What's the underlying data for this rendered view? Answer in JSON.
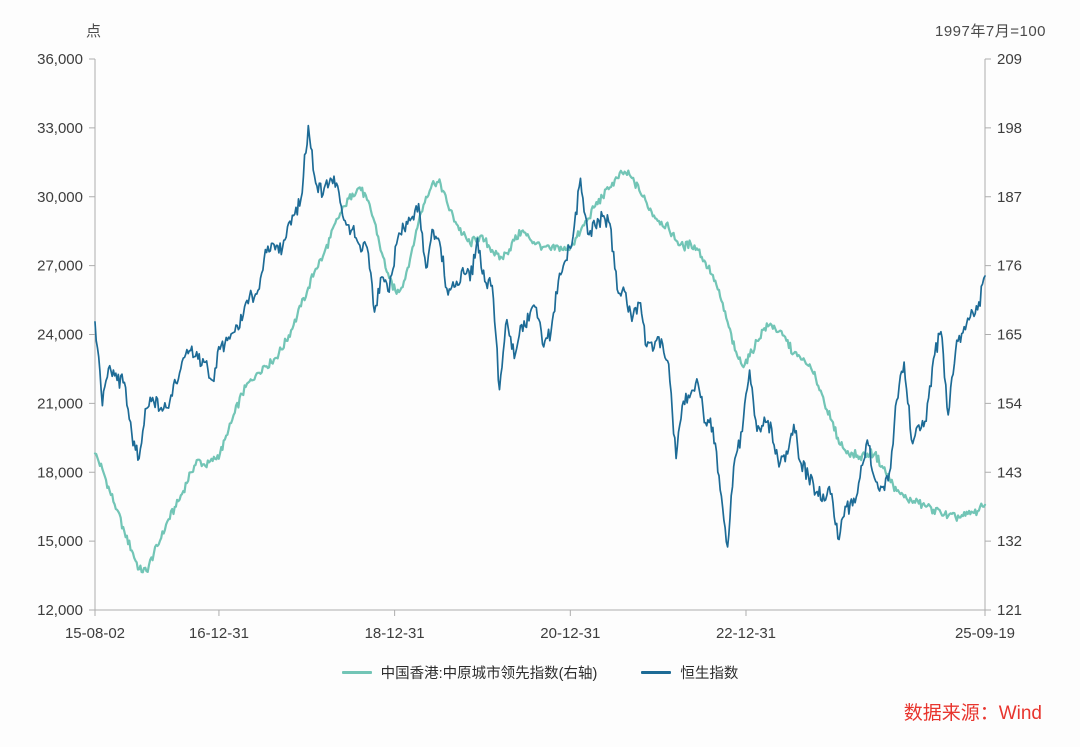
{
  "header": {
    "left_axis_unit": "点",
    "right_axis_note": "1997年7月=100"
  },
  "footer": {
    "source": "数据来源：Wind",
    "source_color": "#E8352E"
  },
  "chart_data": {
    "type": "line",
    "title": "",
    "grid": false,
    "legend_position": "bottom",
    "axis_color": "#ADADAD",
    "x_axis": {
      "range": [
        2015.586,
        2025.718
      ],
      "ticks": [
        {
          "label": "15-08-02",
          "t": 2015.586
        },
        {
          "label": "16-12-31",
          "t": 2016.997
        },
        {
          "label": "18-12-31",
          "t": 2018.997
        },
        {
          "label": "20-12-31",
          "t": 2020.997
        },
        {
          "label": "22-12-31",
          "t": 2022.997
        },
        {
          "label": "25-09-19",
          "t": 2025.718
        }
      ]
    },
    "y_left": {
      "label": "点",
      "range": [
        12000,
        36000
      ],
      "tick_step": 3000,
      "tick_labels": [
        "36,000",
        "33,000",
        "30,000",
        "27,000",
        "24,000",
        "21,000",
        "18,000",
        "15,000",
        "12,000"
      ]
    },
    "y_right": {
      "label": "1997年7月=100",
      "range": [
        121,
        209
      ],
      "tick_step": 11,
      "tick_labels": [
        "209",
        "198",
        "187",
        "176",
        "165",
        "154",
        "143",
        "132",
        "121"
      ]
    },
    "series": [
      {
        "name": "中国香港:中原城市领先指数(右轴)",
        "axis": "right",
        "color": "#72C5B6",
        "start": "2015-08",
        "interval": "monthly",
        "values": [
          146.0,
          143.5,
          140.0,
          137.0,
          133.5,
          130.5,
          127.5,
          127.2,
          130.0,
          132.5,
          135.5,
          137.5,
          140.0,
          143.0,
          145.0,
          144.0,
          144.8,
          146.0,
          149.0,
          152.5,
          155.5,
          157.5,
          158.8,
          160.0,
          160.5,
          162.0,
          164.0,
          166.5,
          169.5,
          172.5,
          175.5,
          177.5,
          180.5,
          183.5,
          185.5,
          187.5,
          188.5,
          186.5,
          183.0,
          178.0,
          174.0,
          171.5,
          173.5,
          178.0,
          183.0,
          187.0,
          189.5,
          189.0,
          185.5,
          183.0,
          181.0,
          179.5,
          180.5,
          180.0,
          178.5,
          177.0,
          178.0,
          180.0,
          181.5,
          180.5,
          179.5,
          179.0,
          178.5,
          179.0,
          178.5,
          179.5,
          181.5,
          183.5,
          185.5,
          187.0,
          188.5,
          190.0,
          191.0,
          190.0,
          188.0,
          186.0,
          184.0,
          183.0,
          182.0,
          180.0,
          179.0,
          179.5,
          178.5,
          176.5,
          174.5,
          171.0,
          167.0,
          162.5,
          160.0,
          161.5,
          164.0,
          166.0,
          166.5,
          165.5,
          164.0,
          162.0,
          161.0,
          160.0,
          158.0,
          155.0,
          151.5,
          148.5,
          146.5,
          146.0,
          145.5,
          146.0,
          146.0,
          144.0,
          142.0,
          140.0,
          139.0,
          138.5,
          138.0,
          137.5,
          137.0,
          136.5,
          136.0,
          135.8,
          136.0,
          136.3,
          136.8,
          137.8
        ]
      },
      {
        "name": "恒生指数",
        "axis": "left",
        "color": "#1D6B96",
        "start": "2015-08",
        "interval": "monthly",
        "values": [
          24550,
          20900,
          22640,
          22000,
          21914,
          19683,
          18600,
          20777,
          21067,
          20815,
          20794,
          21891,
          22976,
          23297,
          22935,
          22790,
          22000,
          23361,
          23741,
          24112,
          24615,
          25661,
          25765,
          27324,
          27970,
          27554,
          28246,
          29177,
          29919,
          33100,
          30600,
          30093,
          30808,
          30469,
          28955,
          28583,
          27889,
          27789,
          24980,
          26507,
          25846,
          27942,
          28633,
          29051,
          29699,
          26901,
          28543,
          27778,
          25725,
          26092,
          26907,
          26346,
          28189,
          26313,
          26130,
          21600,
          24644,
          22961,
          24427,
          24595,
          25177,
          23459,
          24107,
          26341,
          27231,
          28284,
          30800,
          28378,
          28725,
          29152,
          28828,
          25961,
          25879,
          24576,
          25377,
          23475,
          23398,
          23802,
          22713,
          18600,
          21089,
          21415,
          21859,
          20157,
          19954,
          17223,
          14750,
          18597,
          19781,
          22450,
          19786,
          20400,
          19895,
          18234,
          18916,
          20078,
          18382,
          17810,
          17112,
          17042,
          17047,
          15100,
          16511,
          16541,
          17763,
          19400,
          17719,
          17345,
          17989,
          21134,
          22800,
          19424,
          20060,
          20225,
          22941,
          24120,
          20500,
          23290,
          24072,
          24773,
          25078,
          26550
        ]
      }
    ]
  }
}
